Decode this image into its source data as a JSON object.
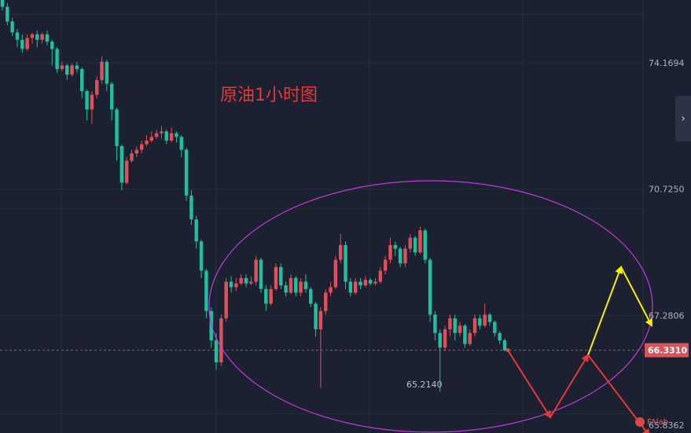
{
  "chart_data": {
    "type": "candlestick",
    "title": "原油1小时图",
    "price_axis_labels": [
      "74.1694",
      "70.7250",
      "67.2806"
    ],
    "current_price": "66.3310",
    "bottom_price_label": "65.8362",
    "low_annotation": "65.2140",
    "ylim": [
      64.2,
      75.8
    ],
    "candles": [
      [
        75.9,
        75.7,
        75.95,
        75.6
      ],
      [
        75.7,
        75.3,
        75.8,
        75.2
      ],
      [
        75.3,
        75.0,
        75.4,
        74.9
      ],
      [
        75.0,
        74.8,
        75.1,
        74.6
      ],
      [
        74.8,
        74.55,
        74.95,
        74.45
      ],
      [
        74.55,
        74.85,
        74.95,
        74.5
      ],
      [
        74.85,
        74.95,
        75.0,
        74.7
      ],
      [
        74.95,
        74.8,
        75.05,
        74.6
      ],
      [
        74.8,
        74.95,
        75.0,
        74.7
      ],
      [
        74.95,
        74.75,
        75.05,
        74.65
      ],
      [
        74.75,
        74.55,
        74.8,
        74.1
      ],
      [
        74.55,
        74.0,
        74.6,
        73.9
      ],
      [
        74.0,
        74.1,
        74.2,
        73.95
      ],
      [
        74.1,
        73.85,
        74.15,
        73.7
      ],
      [
        73.85,
        74.1,
        74.15,
        73.8
      ],
      [
        74.1,
        74.0,
        74.2,
        73.9
      ],
      [
        74.0,
        73.4,
        74.05,
        73.2
      ],
      [
        73.4,
        72.9,
        73.45,
        72.6
      ],
      [
        72.9,
        73.3,
        73.4,
        72.5
      ],
      [
        73.3,
        73.7,
        73.8,
        73.2
      ],
      [
        73.7,
        74.2,
        74.35,
        73.6
      ],
      [
        74.2,
        73.6,
        74.25,
        73.4
      ],
      [
        73.6,
        72.9,
        73.65,
        72.6
      ],
      [
        72.9,
        71.9,
        72.95,
        71.5
      ],
      [
        71.9,
        70.9,
        71.95,
        70.7
      ],
      [
        70.9,
        71.5,
        71.6,
        70.85
      ],
      [
        71.5,
        71.7,
        71.8,
        71.45
      ],
      [
        71.7,
        71.8,
        71.9,
        71.6
      ],
      [
        71.8,
        71.95,
        72.05,
        71.7
      ],
      [
        71.95,
        72.05,
        72.2,
        71.9
      ],
      [
        72.05,
        72.15,
        72.3,
        72.0
      ],
      [
        72.15,
        72.25,
        72.35,
        72.1
      ],
      [
        72.25,
        72.3,
        72.45,
        72.1
      ],
      [
        72.3,
        72.05,
        72.35,
        71.95
      ],
      [
        72.05,
        72.25,
        72.4,
        72.0
      ],
      [
        72.25,
        72.15,
        72.3,
        72.0
      ],
      [
        72.15,
        71.8,
        72.2,
        71.6
      ],
      [
        71.8,
        70.55,
        71.85,
        70.4
      ],
      [
        70.55,
        69.9,
        70.7,
        69.75
      ],
      [
        69.9,
        69.3,
        70.0,
        69.1
      ],
      [
        69.3,
        68.5,
        69.35,
        68.3
      ],
      [
        68.5,
        67.4,
        68.55,
        67.2
      ],
      [
        67.4,
        66.6,
        67.5,
        66.4
      ],
      [
        66.6,
        66.0,
        66.8,
        65.8
      ],
      [
        66.0,
        67.2,
        67.3,
        65.9
      ],
      [
        67.2,
        68.2,
        68.3,
        67.1
      ],
      [
        68.2,
        68.05,
        68.35,
        67.9
      ],
      [
        68.05,
        68.15,
        68.3,
        67.95
      ],
      [
        68.15,
        68.3,
        68.4,
        68.1
      ],
      [
        68.3,
        68.15,
        68.4,
        68.05
      ],
      [
        68.15,
        68.2,
        68.35,
        68.1
      ],
      [
        68.2,
        68.8,
        68.9,
        68.1
      ],
      [
        68.8,
        68.0,
        68.85,
        67.9
      ],
      [
        68.0,
        67.6,
        68.1,
        67.4
      ],
      [
        67.6,
        68.0,
        68.1,
        67.55
      ],
      [
        68.0,
        68.6,
        68.7,
        67.95
      ],
      [
        68.6,
        68.1,
        68.7,
        68.0
      ],
      [
        68.1,
        67.9,
        68.2,
        67.8
      ],
      [
        67.9,
        68.3,
        68.4,
        67.85
      ],
      [
        68.3,
        67.9,
        68.35,
        67.8
      ],
      [
        67.9,
        68.2,
        68.3,
        67.8
      ],
      [
        68.2,
        68.0,
        68.4,
        67.9
      ],
      [
        68.0,
        67.6,
        68.05,
        67.5
      ],
      [
        67.6,
        66.9,
        67.65,
        66.7
      ],
      [
        66.9,
        67.4,
        67.5,
        65.3
      ],
      [
        67.4,
        67.9,
        68.0,
        67.3
      ],
      [
        67.9,
        68.05,
        68.2,
        67.8
      ],
      [
        68.05,
        68.8,
        68.9,
        68.0
      ],
      [
        68.8,
        69.2,
        69.5,
        68.7
      ],
      [
        69.2,
        68.2,
        69.3,
        68.0
      ],
      [
        68.2,
        67.9,
        68.3,
        67.8
      ],
      [
        67.9,
        68.2,
        68.3,
        67.85
      ],
      [
        68.2,
        68.1,
        68.3,
        68.0
      ],
      [
        68.1,
        68.25,
        68.35,
        68.05
      ],
      [
        68.25,
        68.15,
        68.3,
        68.1
      ],
      [
        68.15,
        68.2,
        68.3,
        68.1
      ],
      [
        68.2,
        68.5,
        68.6,
        68.15
      ],
      [
        68.5,
        68.8,
        68.9,
        68.4
      ],
      [
        68.8,
        69.2,
        69.4,
        68.7
      ],
      [
        69.2,
        69.1,
        69.3,
        68.9
      ],
      [
        69.1,
        68.7,
        69.15,
        68.6
      ],
      [
        68.7,
        69.1,
        69.2,
        68.6
      ],
      [
        69.1,
        69.4,
        69.5,
        69.0
      ],
      [
        69.4,
        69.0,
        69.45,
        68.9
      ],
      [
        69.0,
        69.6,
        69.7,
        68.95
      ],
      [
        69.6,
        68.8,
        69.65,
        68.7
      ],
      [
        68.8,
        67.3,
        68.85,
        67.1
      ],
      [
        67.3,
        66.8,
        67.4,
        66.6
      ],
      [
        66.8,
        66.4,
        66.9,
        65.2
      ],
      [
        66.4,
        66.9,
        67.0,
        66.3
      ],
      [
        66.9,
        67.2,
        67.3,
        66.7
      ],
      [
        67.2,
        66.8,
        67.3,
        66.6
      ],
      [
        66.8,
        67.0,
        67.1,
        66.7
      ],
      [
        67.0,
        66.5,
        67.05,
        66.4
      ],
      [
        66.5,
        66.8,
        66.9,
        66.45
      ],
      [
        66.8,
        67.2,
        67.3,
        66.7
      ],
      [
        67.2,
        67.0,
        67.3,
        66.9
      ],
      [
        67.0,
        67.3,
        67.6,
        66.95
      ],
      [
        67.3,
        67.1,
        67.35,
        67.0
      ],
      [
        67.1,
        66.8,
        67.15,
        66.7
      ],
      [
        66.8,
        66.6,
        66.85,
        66.5
      ],
      [
        66.6,
        66.33,
        66.65,
        66.3
      ]
    ],
    "projection_paths": [
      {
        "color": "#e53935",
        "points": [
          [
            66.33,
            0
          ],
          [
            64.5,
            1
          ],
          [
            66.2,
            2
          ]
        ]
      },
      {
        "color": "#ffee00",
        "points": [
          [
            66.2,
            2
          ],
          [
            68.6,
            3
          ],
          [
            67.0,
            4
          ]
        ]
      },
      {
        "color": "#e53935",
        "points": [
          [
            66.2,
            2
          ],
          [
            64.0,
            4.2
          ]
        ]
      }
    ],
    "colors": {
      "up": "#e0505a",
      "down": "#1fbfa0",
      "ellipse": "#c23ad9",
      "current_line": "#d9535b"
    }
  },
  "ui": {
    "expand_button_icon": "chevron-right-icon",
    "expand_symbol": "›",
    "logo_text": "FAlab"
  }
}
